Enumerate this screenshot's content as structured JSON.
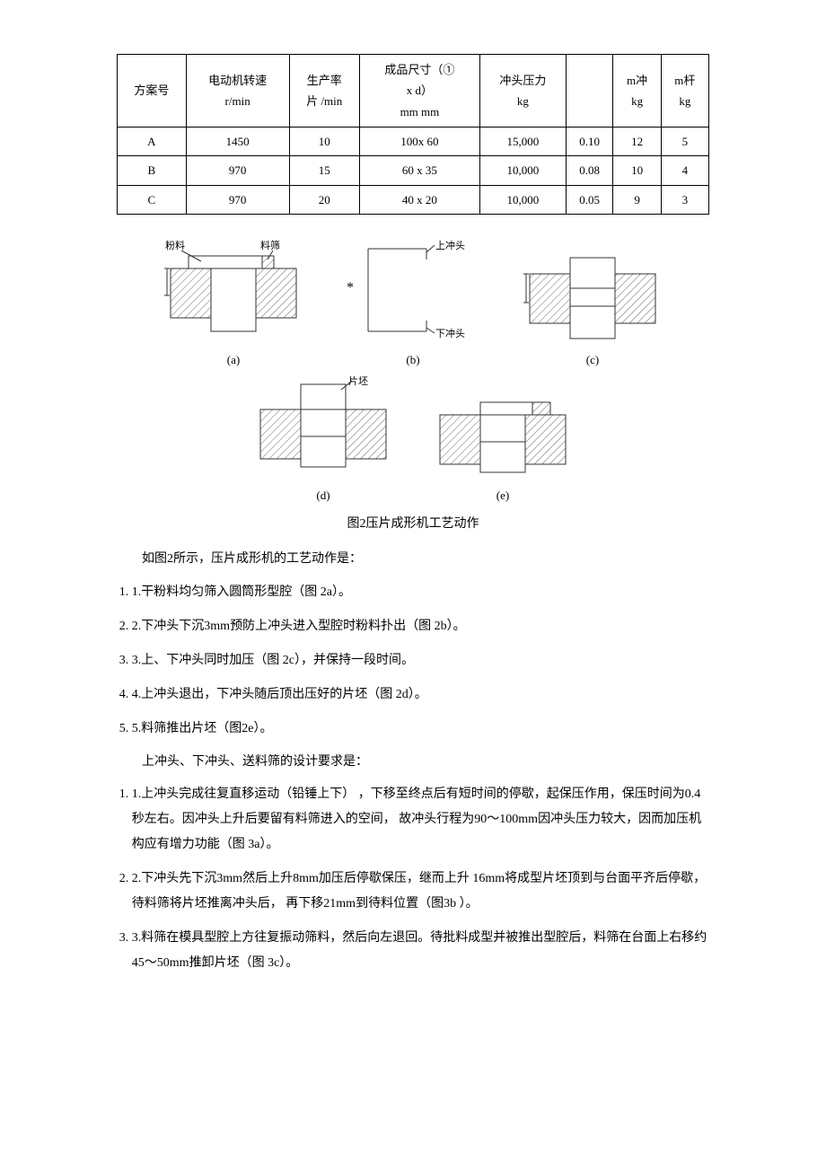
{
  "table": {
    "headers": [
      "方案号",
      "电动机转速\nr/min",
      "生产率\n片 /min",
      "成品尺寸（①\nx d）\nmm mm",
      "冲头压力\nkg",
      "",
      "m冲\nkg",
      "m杆\nkg"
    ],
    "rows": [
      [
        "A",
        "1450",
        "10",
        "100x 60",
        "15,000",
        "0.10",
        "12",
        "5"
      ],
      [
        "B",
        "970",
        "15",
        "60 x 35",
        "10,000",
        "0.08",
        "10",
        "4"
      ],
      [
        "C",
        "970",
        "20",
        "40 x 20",
        "10,000",
        "0.05",
        "9",
        "3"
      ]
    ],
    "col_widths": [
      "60px",
      "70px",
      "70px",
      "120px",
      "90px",
      "60px",
      "60px",
      "60px"
    ],
    "border_color": "#000000",
    "font_size": 13
  },
  "figures": {
    "top_row": [
      {
        "id": "a",
        "label": "(a)",
        "ann_left_top": "粉料",
        "ann_right_top": "料筛",
        "width": 160,
        "height": 110,
        "hatch_color": "#6b6b6b",
        "outline_color": "#333333"
      },
      {
        "id": "b",
        "label": "(b)",
        "ann_top": "上冲头",
        "ann_bottom": "下冲头",
        "star": "*",
        "width": 160,
        "height": 110,
        "outline_color": "#333333"
      },
      {
        "id": "c",
        "label": "(c)",
        "width": 160,
        "height": 110,
        "hatch_color": "#6b6b6b",
        "outline_color": "#333333"
      }
    ],
    "bottom_row": [
      {
        "id": "d",
        "label": "(d)",
        "ann_top": "片坯",
        "width": 160,
        "height": 110,
        "hatch_color": "#6b6b6b",
        "outline_color": "#333333"
      },
      {
        "id": "e",
        "label": "(e)",
        "width": 160,
        "height": 110,
        "hatch_color": "#6b6b6b",
        "outline_color": "#333333"
      }
    ],
    "title": "图2压片成形机工艺动作"
  },
  "text": {
    "intro": "如图2所示，压片成形机的工艺动作是：",
    "list1": [
      "1.干粉料均匀筛入圆筒形型腔（图 2a）。",
      "2.下冲头下沉3mm预防上冲头进入型腔时粉料扑出（图 2b）。",
      "3.上、下冲头同时加压（图        2c），并保持一段时间。",
      "4.上冲头退出，下冲头随后顶出压好的片坯（图 2d）。",
      "5.料筛推出片坯（图2e）。"
    ],
    "mid": "上冲头、下冲头、送料筛的设计要求是：",
    "list2": [
      "1.上冲头完成往复直移运动（铅锤上下）       ，下移至终点后有短时间的停歇，起保压作用，保压时间为0.4秒左右。因冲头上升后要留有料筛进入的空间，        故冲头行程为90～100mm因冲头压力较大，因而加压机构应有增力功能（图 3a）。",
      "2.下冲头先下沉3mm然后上升8mm加压后停歇保压，继而上升               16mm将成型片坯顶到与台面平齐后停歇，   待料筛将片坯推离冲头后，   再下移21mm到待料位置（图3b ）。",
      "3.料筛在模具型腔上方往复振动筛料，然后向左退回。待批料成型并被推出型腔后，料筛在台面上右移约 45～50mm推卸片坯（图 3c）。"
    ]
  },
  "colors": {
    "text": "#000000",
    "background": "#ffffff"
  }
}
